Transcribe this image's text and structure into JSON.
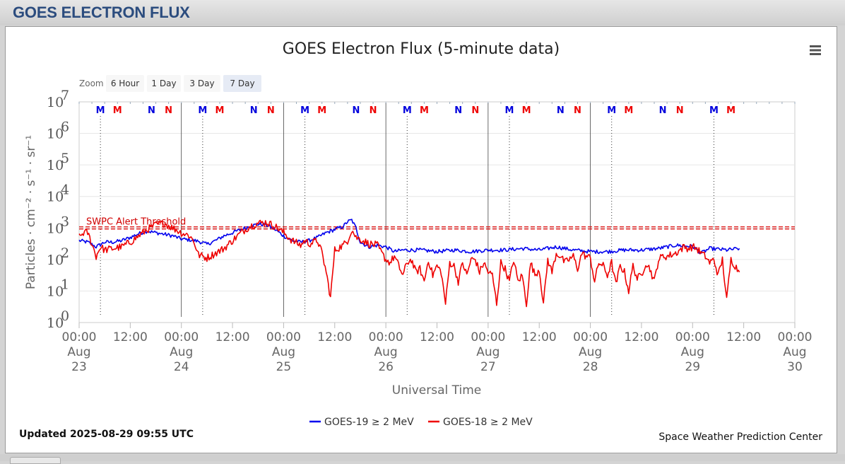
{
  "page": {
    "header_title": "GOES ELECTRON FLUX"
  },
  "toolbar": {
    "zoom_label": "Zoom",
    "menu_icon": "hamburger-menu-icon"
  },
  "zoom_buttons": [
    {
      "label": "6 Hour",
      "selected": false
    },
    {
      "label": "1 Day",
      "selected": false
    },
    {
      "label": "3 Day",
      "selected": false
    },
    {
      "label": "7 Day",
      "selected": true
    }
  ],
  "footer": {
    "updated": "Updated 2025-08-29 09:55 UTC",
    "credit": "Space Weather Prediction Center"
  },
  "chart_data": {
    "type": "line",
    "title": "GOES Electron Flux (5-minute data)",
    "xlabel": "Universal Time",
    "ylabel": "Particles · cm⁻² · s⁻¹ · sr⁻¹",
    "yscale": "log",
    "ylim_exponents": [
      0,
      7
    ],
    "y_ticks": [
      {
        "base": "10",
        "exp": "0"
      },
      {
        "base": "10",
        "exp": "1"
      },
      {
        "base": "10",
        "exp": "2"
      },
      {
        "base": "10",
        "exp": "3"
      },
      {
        "base": "10",
        "exp": "4"
      },
      {
        "base": "10",
        "exp": "5"
      },
      {
        "base": "10",
        "exp": "6"
      },
      {
        "base": "10",
        "exp": "7"
      }
    ],
    "xlim_hours": [
      0,
      168
    ],
    "x_ticks": [
      {
        "h": 0,
        "time": "00:00",
        "mon": "Aug",
        "day": "23"
      },
      {
        "h": 12,
        "time": "12:00"
      },
      {
        "h": 24,
        "time": "00:00",
        "mon": "Aug",
        "day": "24"
      },
      {
        "h": 36,
        "time": "12:00"
      },
      {
        "h": 48,
        "time": "00:00",
        "mon": "Aug",
        "day": "25"
      },
      {
        "h": 60,
        "time": "12:00"
      },
      {
        "h": 72,
        "time": "00:00",
        "mon": "Aug",
        "day": "26"
      },
      {
        "h": 84,
        "time": "12:00"
      },
      {
        "h": 96,
        "time": "00:00",
        "mon": "Aug",
        "day": "27"
      },
      {
        "h": 108,
        "time": "12:00"
      },
      {
        "h": 120,
        "time": "00:00",
        "mon": "Aug",
        "day": "28"
      },
      {
        "h": 132,
        "time": "12:00"
      },
      {
        "h": 144,
        "time": "00:00",
        "mon": "Aug",
        "day": "29"
      },
      {
        "h": 156,
        "time": "12:00"
      },
      {
        "h": 168,
        "time": "00:00",
        "mon": "Aug",
        "day": "30"
      }
    ],
    "threshold": {
      "label": "SWPC Alert Threshold",
      "value_exp": 3.0
    },
    "markers": [
      {
        "h": 5,
        "letter": "M",
        "color": "#0000dd"
      },
      {
        "h": 9,
        "letter": "M",
        "color": "#ee0000"
      },
      {
        "h": 17,
        "letter": "N",
        "color": "#0000dd"
      },
      {
        "h": 21,
        "letter": "N",
        "color": "#ee0000"
      },
      {
        "h": 29,
        "letter": "M",
        "color": "#0000dd"
      },
      {
        "h": 33,
        "letter": "M",
        "color": "#ee0000"
      },
      {
        "h": 41,
        "letter": "N",
        "color": "#0000dd"
      },
      {
        "h": 45,
        "letter": "N",
        "color": "#ee0000"
      },
      {
        "h": 53,
        "letter": "M",
        "color": "#0000dd"
      },
      {
        "h": 57,
        "letter": "M",
        "color": "#ee0000"
      },
      {
        "h": 65,
        "letter": "N",
        "color": "#0000dd"
      },
      {
        "h": 69,
        "letter": "N",
        "color": "#ee0000"
      },
      {
        "h": 77,
        "letter": "M",
        "color": "#0000dd"
      },
      {
        "h": 81,
        "letter": "M",
        "color": "#ee0000"
      },
      {
        "h": 89,
        "letter": "N",
        "color": "#0000dd"
      },
      {
        "h": 93,
        "letter": "N",
        "color": "#ee0000"
      },
      {
        "h": 101,
        "letter": "M",
        "color": "#0000dd"
      },
      {
        "h": 105,
        "letter": "M",
        "color": "#ee0000"
      },
      {
        "h": 113,
        "letter": "N",
        "color": "#0000dd"
      },
      {
        "h": 117,
        "letter": "N",
        "color": "#ee0000"
      },
      {
        "h": 125,
        "letter": "M",
        "color": "#0000dd"
      },
      {
        "h": 129,
        "letter": "M",
        "color": "#ee0000"
      },
      {
        "h": 137,
        "letter": "N",
        "color": "#0000dd"
      },
      {
        "h": 141,
        "letter": "N",
        "color": "#ee0000"
      },
      {
        "h": 149,
        "letter": "M",
        "color": "#0000dd"
      },
      {
        "h": 153,
        "letter": "M",
        "color": "#ee0000"
      }
    ],
    "dotted_lines_h": [
      5,
      29,
      53,
      77,
      101,
      125,
      149
    ],
    "day_lines_h": [
      24,
      48,
      72,
      96,
      120
    ],
    "series": [
      {
        "name": "GOES-19 ≥ 2 MeV",
        "color": "#0000ee",
        "noise_exp": 0.06,
        "points": [
          [
            0,
            2.6
          ],
          [
            2,
            2.55
          ],
          [
            4,
            2.4
          ],
          [
            6,
            2.55
          ],
          [
            8,
            2.55
          ],
          [
            10,
            2.6
          ],
          [
            12,
            2.7
          ],
          [
            14,
            2.82
          ],
          [
            16,
            2.9
          ],
          [
            18,
            2.85
          ],
          [
            20,
            2.8
          ],
          [
            22,
            2.75
          ],
          [
            24,
            2.65
          ],
          [
            26,
            2.62
          ],
          [
            28,
            2.58
          ],
          [
            30,
            2.48
          ],
          [
            32,
            2.6
          ],
          [
            34,
            2.75
          ],
          [
            36,
            2.85
          ],
          [
            38,
            2.95
          ],
          [
            40,
            3.05
          ],
          [
            42,
            3.12
          ],
          [
            44,
            3.1
          ],
          [
            46,
            2.95
          ],
          [
            48,
            2.75
          ],
          [
            50,
            2.6
          ],
          [
            52,
            2.55
          ],
          [
            54,
            2.6
          ],
          [
            56,
            2.7
          ],
          [
            58,
            2.85
          ],
          [
            60,
            2.95
          ],
          [
            62,
            3.05
          ],
          [
            63,
            3.2
          ],
          [
            64,
            3.25
          ],
          [
            65,
            3.0
          ],
          [
            66,
            2.55
          ],
          [
            68,
            2.4
          ],
          [
            70,
            2.45
          ],
          [
            72,
            2.4
          ],
          [
            74,
            2.25
          ],
          [
            76,
            2.3
          ],
          [
            80,
            2.3
          ],
          [
            84,
            2.25
          ],
          [
            88,
            2.3
          ],
          [
            92,
            2.25
          ],
          [
            96,
            2.3
          ],
          [
            100,
            2.3
          ],
          [
            104,
            2.35
          ],
          [
            108,
            2.3
          ],
          [
            112,
            2.4
          ],
          [
            116,
            2.3
          ],
          [
            120,
            2.25
          ],
          [
            124,
            2.25
          ],
          [
            128,
            2.3
          ],
          [
            132,
            2.3
          ],
          [
            136,
            2.35
          ],
          [
            140,
            2.45
          ],
          [
            144,
            2.42
          ],
          [
            146,
            2.2
          ],
          [
            148,
            2.35
          ],
          [
            152,
            2.3
          ],
          [
            155,
            2.35
          ]
        ]
      },
      {
        "name": "GOES-18 ≥ 2 MeV",
        "color": "#ee0000",
        "noise_exp": 0.12,
        "points": [
          [
            0,
            2.7
          ],
          [
            1,
            2.85
          ],
          [
            2,
            2.85
          ],
          [
            3,
            2.5
          ],
          [
            4,
            2.1
          ],
          [
            5,
            2.4
          ],
          [
            6,
            2.3
          ],
          [
            8,
            2.35
          ],
          [
            10,
            2.4
          ],
          [
            12,
            2.55
          ],
          [
            14,
            2.75
          ],
          [
            16,
            2.95
          ],
          [
            18,
            3.1
          ],
          [
            20,
            3.15
          ],
          [
            22,
            3.0
          ],
          [
            24,
            2.85
          ],
          [
            26,
            2.75
          ],
          [
            27,
            2.55
          ],
          [
            28,
            2.15
          ],
          [
            30,
            2.05
          ],
          [
            32,
            2.2
          ],
          [
            34,
            2.35
          ],
          [
            36,
            2.6
          ],
          [
            38,
            2.85
          ],
          [
            40,
            3.05
          ],
          [
            42,
            3.15
          ],
          [
            44,
            3.18
          ],
          [
            46,
            3.05
          ],
          [
            48,
            2.85
          ],
          [
            50,
            2.6
          ],
          [
            52,
            2.45
          ],
          [
            53,
            2.6
          ],
          [
            54,
            2.5
          ],
          [
            56,
            2.6
          ],
          [
            57,
            2.2
          ],
          [
            58,
            1.6
          ],
          [
            59,
            0.8
          ],
          [
            60,
            2.3
          ],
          [
            62,
            2.45
          ],
          [
            63,
            2.6
          ],
          [
            64,
            2.95
          ],
          [
            65,
            2.7
          ],
          [
            66,
            2.65
          ],
          [
            68,
            2.5
          ],
          [
            70,
            2.45
          ],
          [
            71,
            2.2
          ],
          [
            72,
            2.0
          ],
          [
            73,
            1.9
          ],
          [
            74,
            2.1
          ],
          [
            75,
            1.8
          ],
          [
            76,
            1.5
          ],
          [
            77,
            1.9
          ],
          [
            78,
            2.0
          ],
          [
            79,
            1.6
          ],
          [
            80,
            1.7
          ],
          [
            81,
            1.3
          ],
          [
            82,
            2.0
          ],
          [
            83,
            1.5
          ],
          [
            84,
            1.8
          ],
          [
            85,
            1.6
          ],
          [
            86,
            0.6
          ],
          [
            87,
            1.9
          ],
          [
            88,
            1.8
          ],
          [
            89,
            1.3
          ],
          [
            90,
            1.9
          ],
          [
            91,
            1.5
          ],
          [
            92,
            2.0
          ],
          [
            93,
            2.0
          ],
          [
            94,
            1.6
          ],
          [
            95,
            1.9
          ],
          [
            96,
            1.6
          ],
          [
            97,
            1.5
          ],
          [
            98,
            0.6
          ],
          [
            99,
            1.9
          ],
          [
            100,
            1.7
          ],
          [
            101,
            1.3
          ],
          [
            102,
            2.0
          ],
          [
            103,
            1.3
          ],
          [
            104,
            1.5
          ],
          [
            105,
            0.6
          ],
          [
            106,
            1.9
          ],
          [
            107,
            1.5
          ],
          [
            108,
            1.7
          ],
          [
            109,
            0.6
          ],
          [
            110,
            2.0
          ],
          [
            111,
            1.6
          ],
          [
            112,
            2.2
          ],
          [
            113,
            2.1
          ],
          [
            114,
            1.9
          ],
          [
            115,
            2.0
          ],
          [
            116,
            2.1
          ],
          [
            117,
            1.7
          ],
          [
            118,
            2.2
          ],
          [
            119,
            2.1
          ],
          [
            120,
            2.05
          ],
          [
            121,
            1.3
          ],
          [
            122,
            1.9
          ],
          [
            123,
            1.8
          ],
          [
            124,
            1.5
          ],
          [
            125,
            1.9
          ],
          [
            126,
            1.2
          ],
          [
            127,
            1.8
          ],
          [
            128,
            1.6
          ],
          [
            129,
            1.0
          ],
          [
            130,
            1.8
          ],
          [
            131,
            1.4
          ],
          [
            132,
            1.5
          ],
          [
            133,
            1.9
          ],
          [
            134,
            1.7
          ],
          [
            135,
            1.3
          ],
          [
            136,
            2.0
          ],
          [
            137,
            2.1
          ],
          [
            138,
            2.1
          ],
          [
            140,
            2.2
          ],
          [
            142,
            2.4
          ],
          [
            143,
            2.35
          ],
          [
            144,
            2.4
          ],
          [
            145,
            2.35
          ],
          [
            146,
            2.2
          ],
          [
            147,
            2.1
          ],
          [
            148,
            1.9
          ],
          [
            149,
            2.0
          ],
          [
            150,
            1.5
          ],
          [
            151,
            2.0
          ],
          [
            152,
            0.7
          ],
          [
            153,
            2.0
          ],
          [
            154,
            1.8
          ],
          [
            155,
            1.6
          ]
        ]
      }
    ],
    "legend_position": "bottom-center"
  }
}
